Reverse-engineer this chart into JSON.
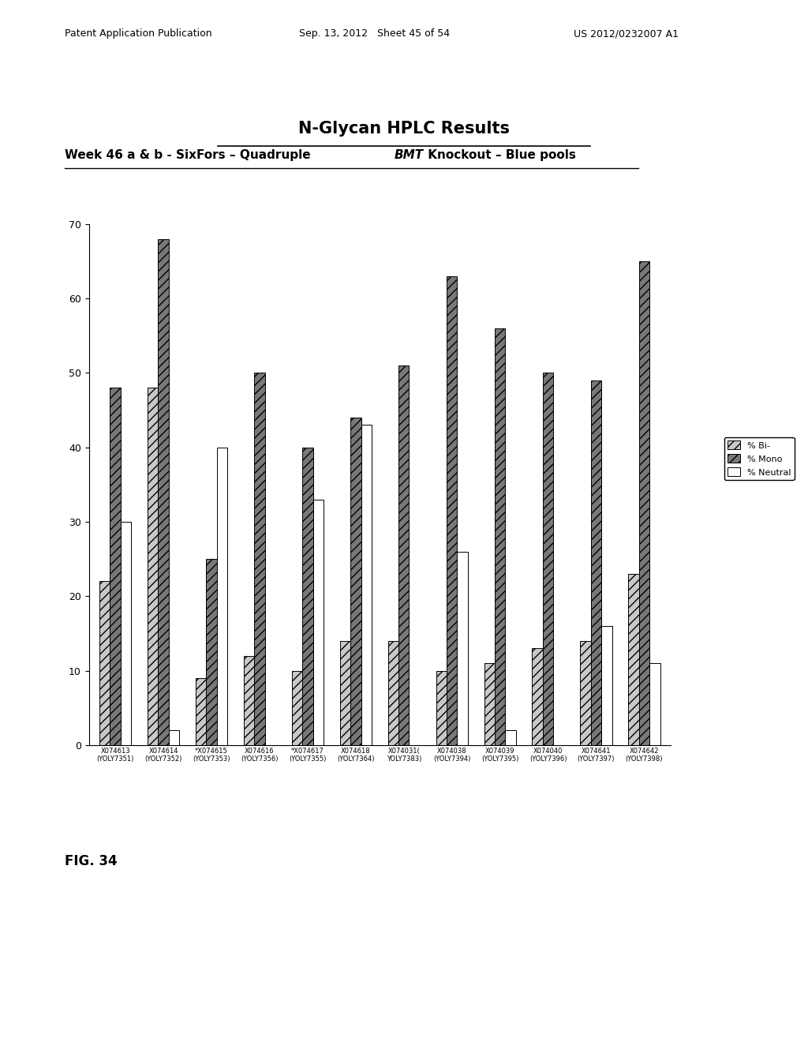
{
  "title": "N-Glycan HPLC Results",
  "subtitle_part1": "Week 46 a & b - SixFors – Quadruple ",
  "subtitle_bmi": "BMT",
  "subtitle_part2": " Knockout – Blue pools",
  "header_left": "Patent Application Publication",
  "header_mid": "Sep. 13, 2012   Sheet 45 of 54",
  "header_right": "US 2012/0232007 A1",
  "fig_label": "FIG. 34",
  "categories_line1": [
    "X074613",
    "X074614",
    "*X074615",
    "X074616",
    "*X074617",
    "X074618",
    "X074031(",
    "X074038",
    "X074039",
    "X074040",
    "X074641",
    "X074642"
  ],
  "categories_line2": [
    "(YOLY7351)",
    "(YOLY7352)",
    "(YOLY7353)",
    "(YOLY7356)",
    "(YOLY7355)",
    "(YOLY7364)",
    "YOLY7383)",
    "(YOLY7394)",
    "(YOLY7395)",
    "(YOLY7396)",
    "(YOLY7397)",
    "(YOLY7398)"
  ],
  "bi_values": [
    22,
    48,
    9,
    12,
    10,
    14,
    14,
    10,
    11,
    13,
    14,
    23
  ],
  "mono_values": [
    48,
    68,
    25,
    50,
    40,
    44,
    51,
    63,
    56,
    50,
    49,
    65
  ],
  "neutral_values": [
    30,
    2,
    40,
    0,
    33,
    43,
    0,
    26,
    2,
    0,
    16,
    11
  ],
  "ylim": [
    0,
    70
  ],
  "yticks": [
    0,
    10,
    20,
    30,
    40,
    50,
    60,
    70
  ],
  "legend_labels": [
    "% Bi-",
    "% Mono",
    "% Neutral"
  ],
  "bi_color": "#c8c8c8",
  "mono_color": "#787878",
  "neutral_color": "#ffffff",
  "bi_hatch": "///",
  "mono_hatch": "///",
  "neutral_hatch": "",
  "bar_edge_color": "#000000",
  "fig_width": 10.24,
  "fig_height": 13.2,
  "background_color": "#ffffff"
}
